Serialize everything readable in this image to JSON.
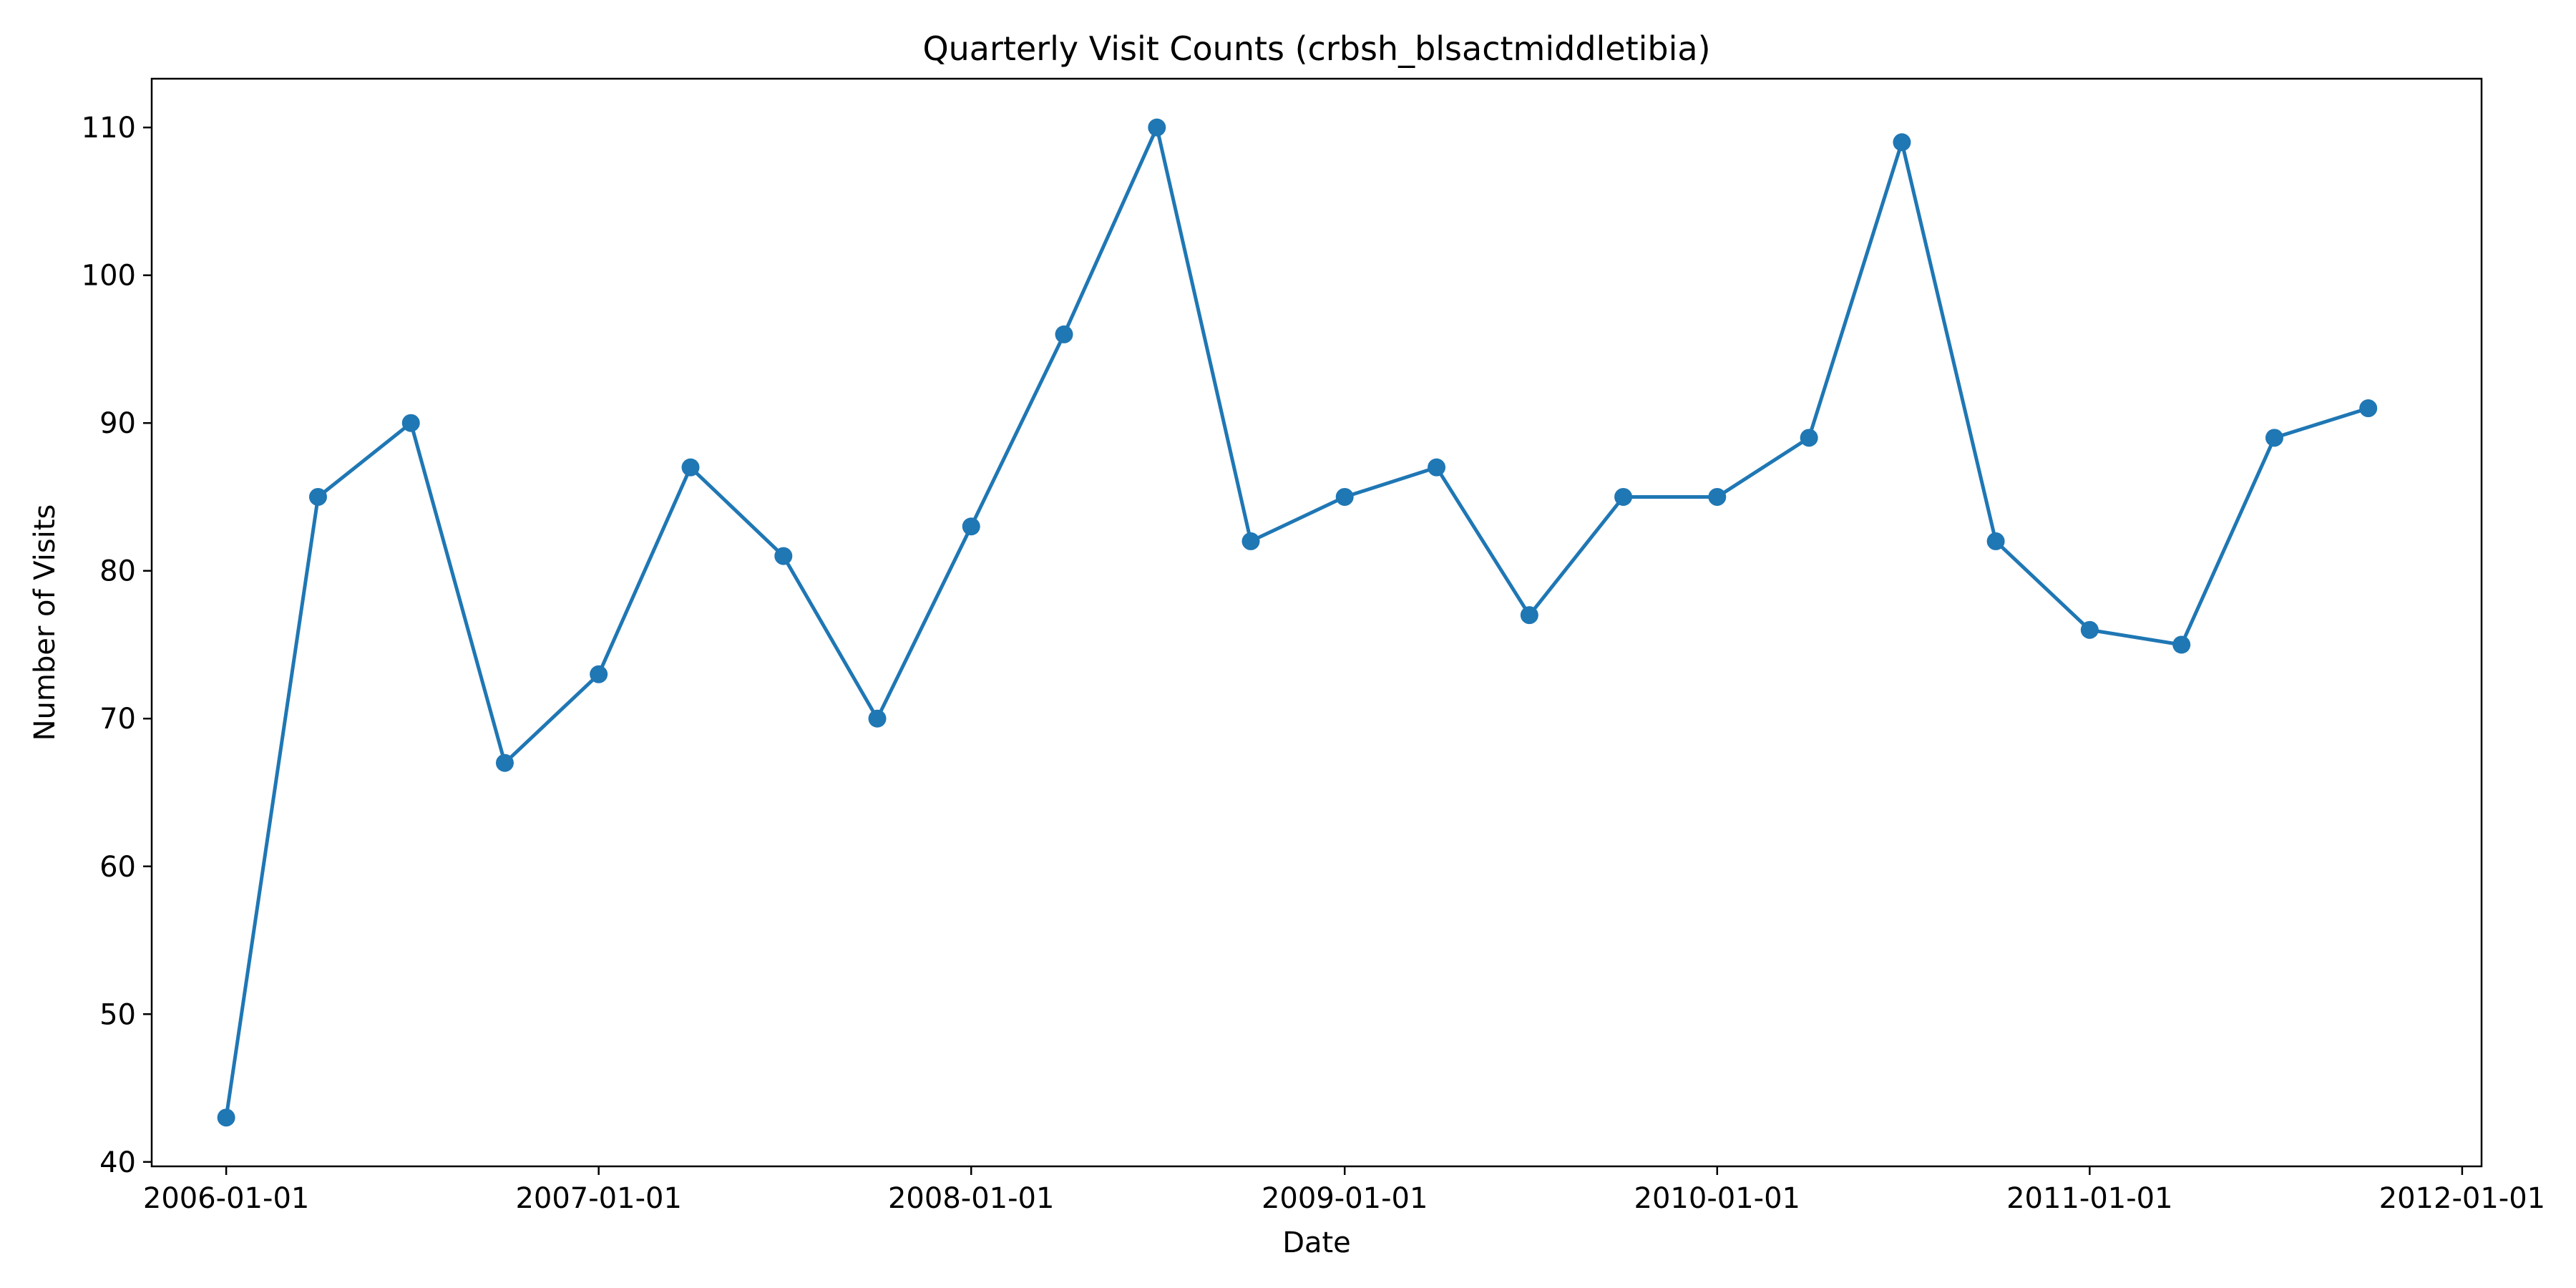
{
  "chart_data": {
    "type": "line",
    "title": "Quarterly Visit Counts (crbsh_blsactmiddletibia)",
    "xlabel": "Date",
    "ylabel": "Number of Visits",
    "x_ticks": [
      "2006-01-01",
      "2007-01-01",
      "2008-01-01",
      "2009-01-01",
      "2010-01-01",
      "2011-01-01",
      "2012-01-01"
    ],
    "y_ticks": [
      40,
      50,
      60,
      70,
      80,
      90,
      100,
      110
    ],
    "xlim": [
      "2005-10-20",
      "2012-01-20"
    ],
    "ylim": [
      39.7,
      113.3
    ],
    "grid": false,
    "series_color": "#1f77b4",
    "series": [
      {
        "x": [
          "2006-01-01",
          "2006-04-01",
          "2006-07-01",
          "2006-10-01",
          "2007-01-01",
          "2007-04-01",
          "2007-07-01",
          "2007-10-01",
          "2008-01-01",
          "2008-04-01",
          "2008-07-01",
          "2008-10-01",
          "2009-01-01",
          "2009-04-01",
          "2009-07-01",
          "2009-10-01",
          "2010-01-01",
          "2010-04-01",
          "2010-07-01",
          "2010-10-01",
          "2011-01-01",
          "2011-04-01",
          "2011-07-01",
          "2011-10-01"
        ],
        "y": [
          43,
          85,
          90,
          67,
          73,
          87,
          81,
          70,
          83,
          96,
          110,
          82,
          85,
          87,
          77,
          85,
          85,
          89,
          109,
          82,
          76,
          75,
          89,
          91
        ]
      }
    ]
  }
}
